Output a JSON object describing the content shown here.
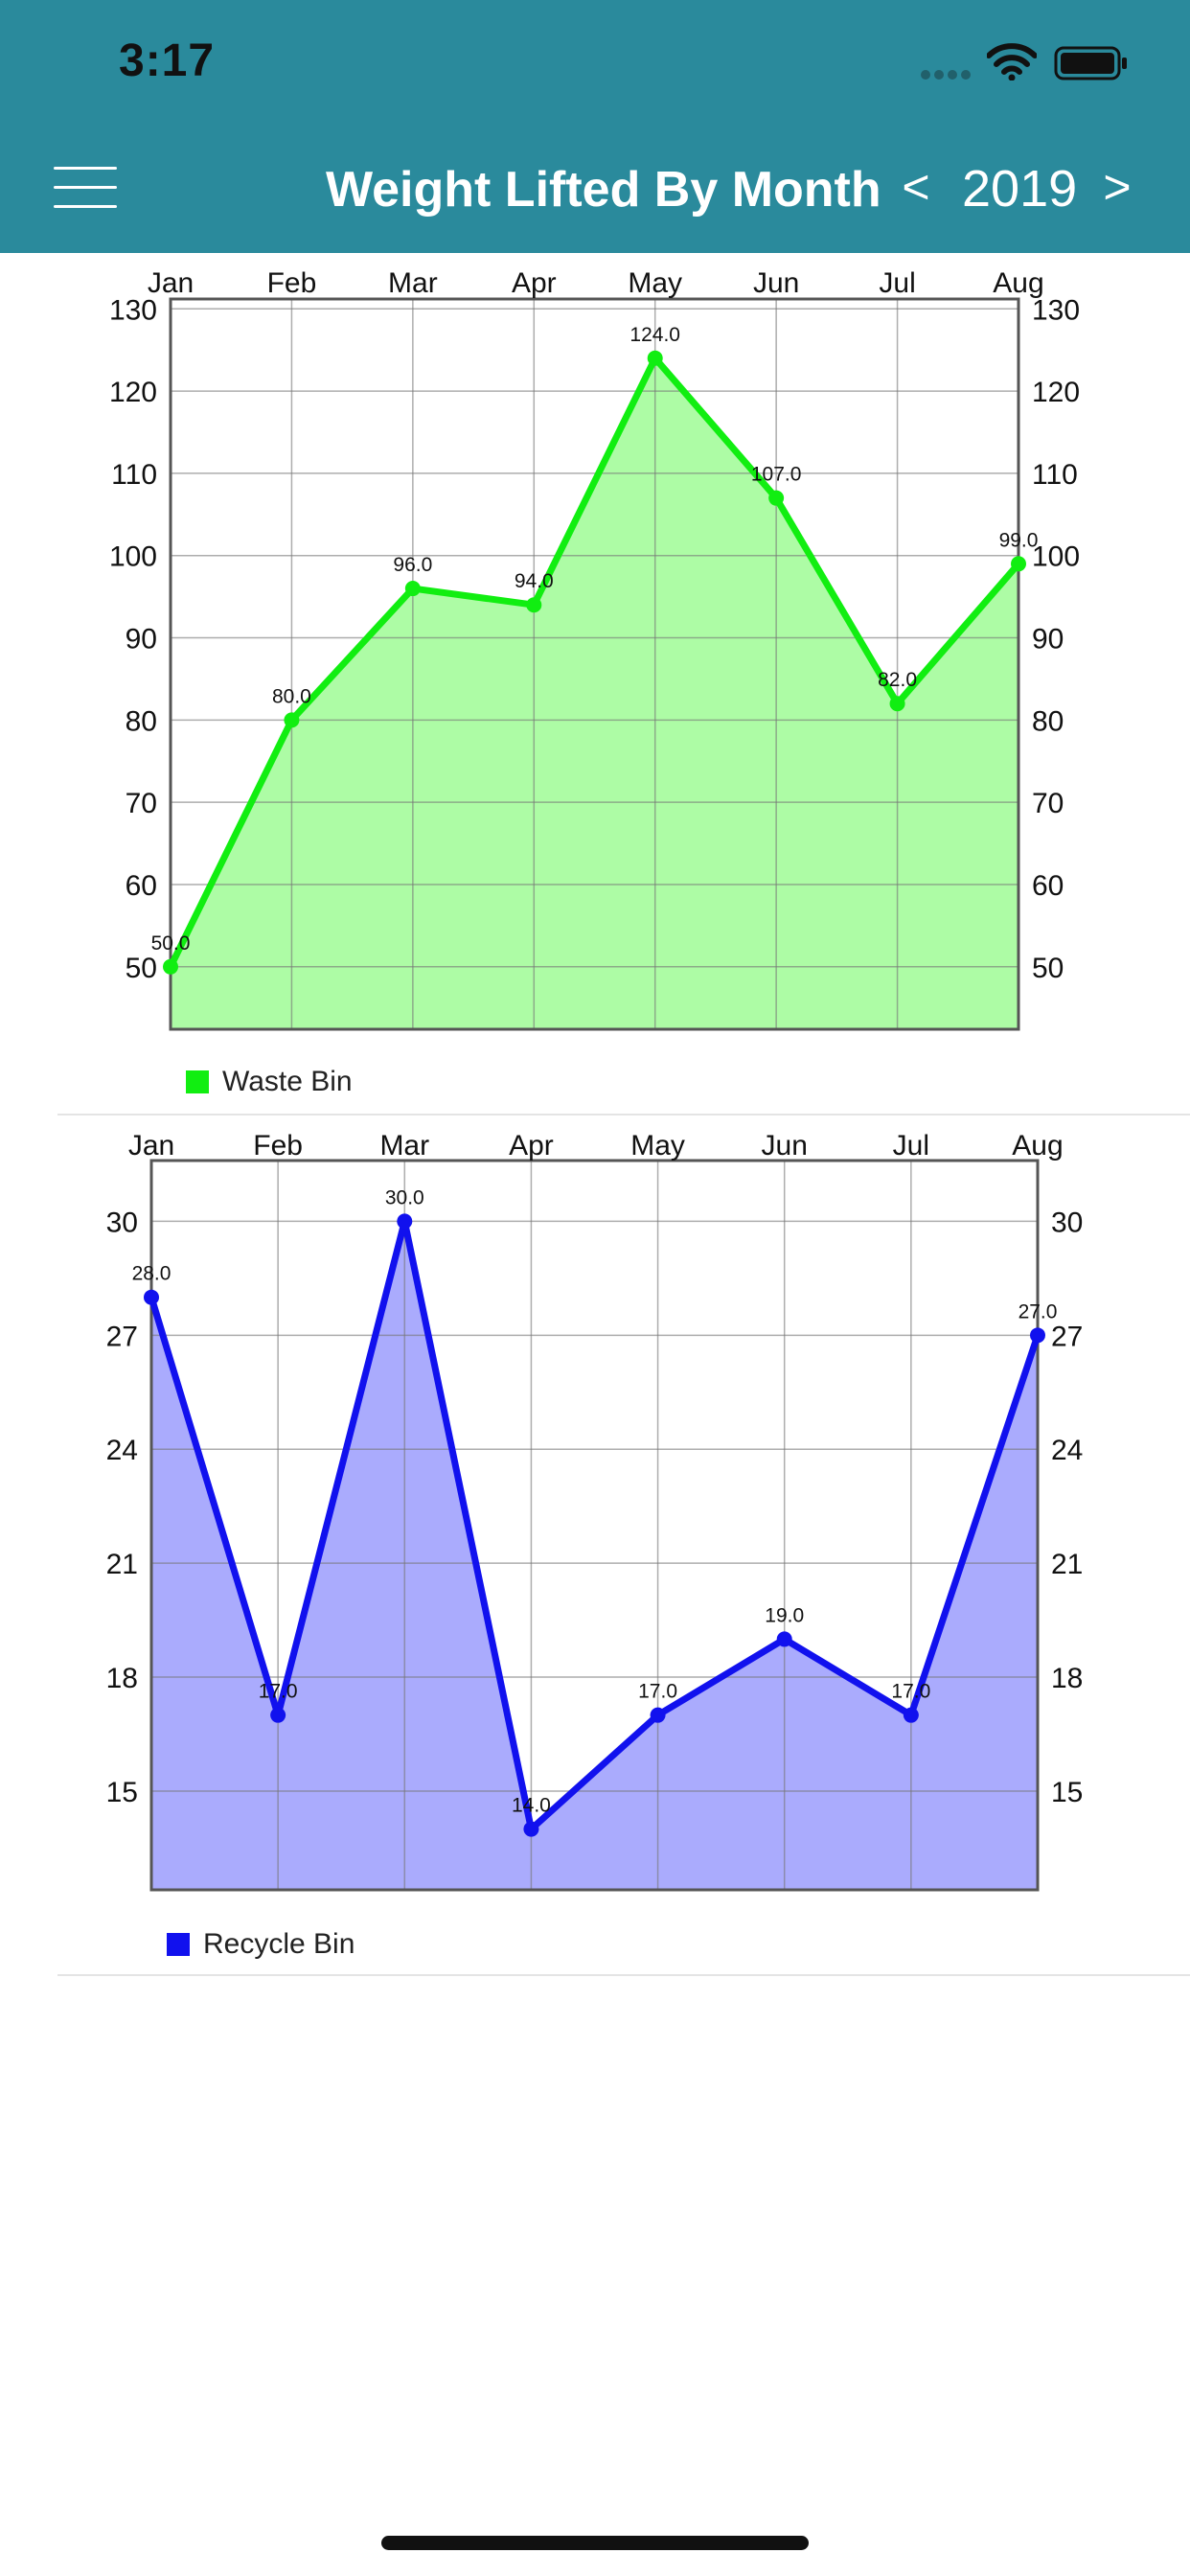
{
  "status_bar": {
    "time": "3:17"
  },
  "header": {
    "title": "Weight Lifted By Month",
    "prev_label": "<",
    "year": "2019",
    "next_label": ">"
  },
  "charts": [
    {
      "id": "waste",
      "chart_data": {
        "type": "area",
        "categories": [
          "Jan",
          "Feb",
          "Mar",
          "Apr",
          "May",
          "Jun",
          "Jul",
          "Aug"
        ],
        "series": [
          {
            "name": "Waste Bin",
            "values": [
              50.0,
              80.0,
              96.0,
              94.0,
              124.0,
              107.0,
              82.0,
              99.0
            ]
          }
        ],
        "data_labels": [
          "50.0",
          "80.0",
          "96.0",
          "94.0",
          "124.0",
          "107.0",
          "82.0",
          "99.0"
        ],
        "y_ticks": [
          "50",
          "60",
          "70",
          "80",
          "90",
          "100",
          "110",
          "120",
          "130"
        ],
        "ylim": [
          42.4,
          131.2
        ],
        "grid": true,
        "legend": "bottom-left",
        "line_color": "#11ee11",
        "fill_color": "#adfca5"
      }
    },
    {
      "id": "recycle",
      "chart_data": {
        "type": "area",
        "categories": [
          "Jan",
          "Feb",
          "Mar",
          "Apr",
          "May",
          "Jun",
          "Jul",
          "Aug"
        ],
        "series": [
          {
            "name": "Recycle Bin",
            "values": [
              28.0,
              17.0,
              30.0,
              14.0,
              17.0,
              19.0,
              17.0,
              27.0
            ]
          }
        ],
        "data_labels": [
          "28.0",
          "17.0",
          "30.0",
          "14.0",
          "17.0",
          "19.0",
          "17.0",
          "27.0"
        ],
        "y_ticks": [
          "15",
          "18",
          "21",
          "24",
          "27",
          "30"
        ],
        "ylim": [
          12.4,
          31.6
        ],
        "grid": true,
        "legend": "bottom-left",
        "line_color": "#1111ee",
        "fill_color": "#aaabfd"
      }
    }
  ]
}
